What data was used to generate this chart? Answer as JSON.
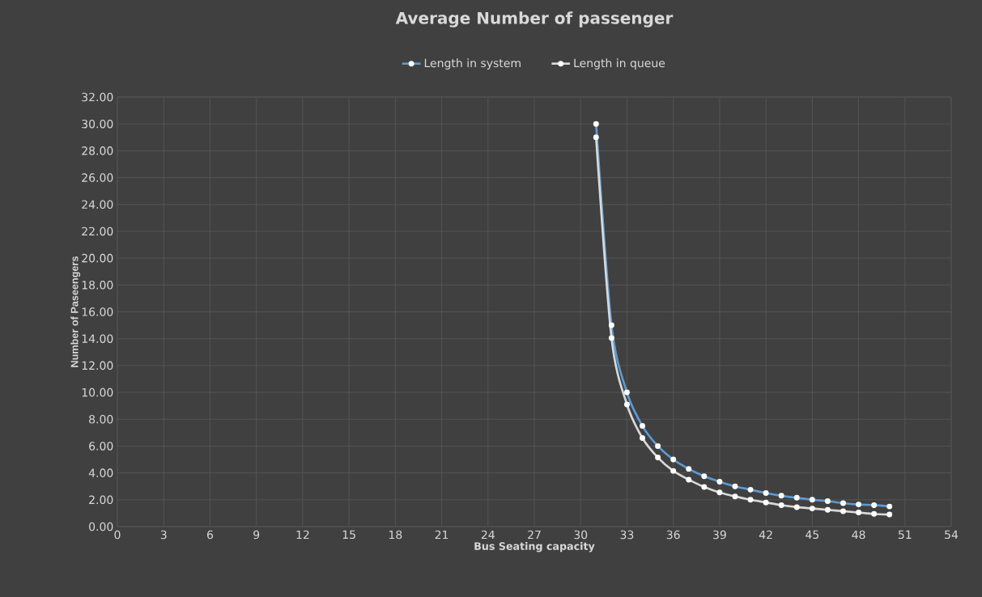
{
  "chart_data": {
    "type": "line",
    "title": "Average Number of passenger",
    "xlabel": "Bus Seating capacity",
    "ylabel": "Number of Paseengers",
    "x": [
      31,
      32,
      33,
      34,
      35,
      36,
      37,
      38,
      39,
      40,
      41,
      42,
      43,
      44,
      45,
      46,
      47,
      48,
      49,
      50
    ],
    "series": [
      {
        "name": "Length in system",
        "color": "#5b9bd5",
        "values": [
          30,
          15,
          10,
          7.5,
          6,
          5,
          4.3,
          3.75,
          3.35,
          3,
          2.75,
          2.5,
          2.3,
          2.15,
          2,
          1.9,
          1.75,
          1.65,
          1.6,
          1.5
        ]
      },
      {
        "name": "Length in queue",
        "color": "#d9d9d9",
        "values": [
          29,
          14.05,
          9.1,
          6.6,
          5.15,
          4.15,
          3.5,
          2.95,
          2.55,
          2.25,
          2,
          1.8,
          1.6,
          1.45,
          1.35,
          1.25,
          1.15,
          1.05,
          0.95,
          0.9
        ]
      }
    ],
    "xlim": [
      0,
      54
    ],
    "xticks": [
      0,
      3,
      6,
      9,
      12,
      15,
      18,
      21,
      24,
      27,
      30,
      33,
      36,
      39,
      42,
      45,
      48,
      51,
      54
    ],
    "ylim": [
      0,
      32
    ],
    "yticks": [
      {
        "value": 0,
        "label": "0.00"
      },
      {
        "value": 2,
        "label": "2.00"
      },
      {
        "value": 4,
        "label": "4.00"
      },
      {
        "value": 6,
        "label": "6.00"
      },
      {
        "value": 8,
        "label": "8.00"
      },
      {
        "value": 10,
        "label": "10.00"
      },
      {
        "value": 12,
        "label": "12.00"
      },
      {
        "value": 14,
        "label": "14.00"
      },
      {
        "value": 16,
        "label": "16.00"
      },
      {
        "value": 18,
        "label": "18.00"
      },
      {
        "value": 20,
        "label": "20.00"
      },
      {
        "value": 22,
        "label": "22.00"
      },
      {
        "value": 24,
        "label": "24.00"
      },
      {
        "value": 26,
        "label": "26.00"
      },
      {
        "value": 28,
        "label": "28.00"
      },
      {
        "value": 30,
        "label": "30.00"
      },
      {
        "value": 32,
        "label": "32.00"
      }
    ],
    "grid": true,
    "legend": "top",
    "marker": "circle",
    "line_style": "solid"
  }
}
